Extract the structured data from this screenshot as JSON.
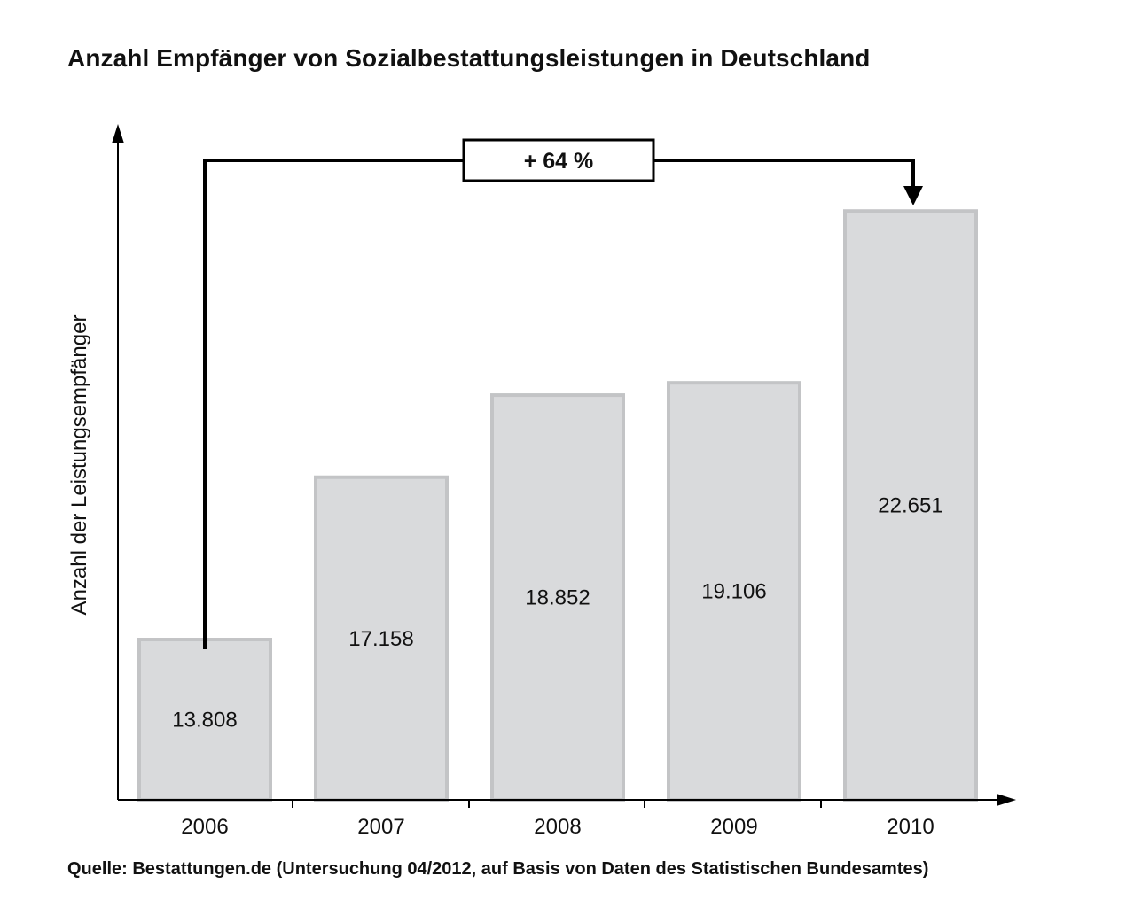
{
  "chart_data": {
    "type": "bar",
    "title": "Anzahl Empfänger von Sozialbestattungsleistungen in Deutschland",
    "xlabel": "",
    "ylabel": "Anzahl der Leistungsempfänger",
    "categories": [
      "2006",
      "2007",
      "2008",
      "2009",
      "2010"
    ],
    "values": [
      13808,
      17158,
      18852,
      19106,
      22651
    ],
    "value_labels": [
      "13.808",
      "17.158",
      "18.852",
      "19.106",
      "22.651"
    ],
    "ylim": [
      10500,
      24300
    ],
    "grid": false,
    "legend": "none",
    "annotation": {
      "text": "+ 64 %",
      "from": "2006",
      "to": "2010"
    },
    "bar_color": "#d9dadc",
    "bar_border_color": "#c3c4c6"
  },
  "source": "Quelle: Bestattungen.de (Untersuchung 04/2012, auf Basis von Daten des Statistischen Bundesamtes)"
}
